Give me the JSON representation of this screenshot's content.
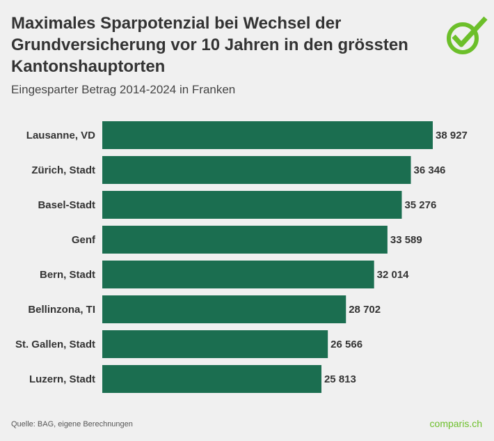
{
  "title": "Maximales Sparpotenzial bei Wechsel der Grundversicherung vor 10 Jahren in den grössten Kantonshauptorten",
  "subtitle": "Eingesparter Betrag 2014-2024 in Franken",
  "source": "Quelle: BAG, eigene Berechnungen",
  "brand": "comparis.ch",
  "logo_icon": "checkmark-circle-icon",
  "colors": {
    "bar": "#1b6e50",
    "brand": "#6cbf2a",
    "text": "#333333"
  },
  "chart_data": {
    "type": "bar",
    "orientation": "horizontal",
    "title": "Maximales Sparpotenzial bei Wechsel der Grundversicherung vor 10 Jahren in den grössten Kantonshauptorten",
    "subtitle": "Eingesparter Betrag 2014-2024 in Franken",
    "categories": [
      "Lausanne, VD",
      "Zürich, Stadt",
      "Basel-Stadt",
      "Genf",
      "Bern, Stadt",
      "Bellinzona, TI",
      "St. Gallen, Stadt",
      "Luzern, Stadt"
    ],
    "values": [
      38927,
      36346,
      35276,
      33589,
      32014,
      28702,
      26566,
      25813
    ],
    "value_labels": [
      "38 927",
      "36 346",
      "35 276",
      "33 589",
      "32 014",
      "28 702",
      "26 566",
      "25 813"
    ],
    "xlim": [
      0,
      45000
    ],
    "grid": false,
    "legend": "none"
  }
}
